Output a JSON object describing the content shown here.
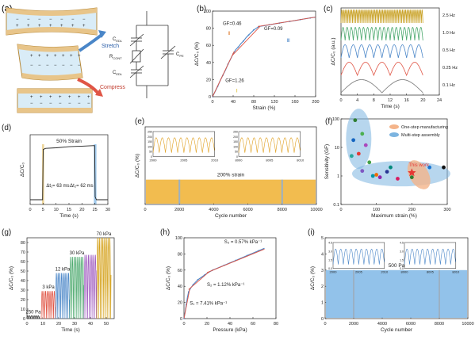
{
  "panel_letters": [
    "(a)",
    "(b)",
    "(c)",
    "(d)",
    "(e)",
    "(f)",
    "(g)",
    "(h)",
    "(i)"
  ],
  "panel_a": {
    "stretch_label": "Stretch",
    "compress_label": "Compress",
    "circuit_labels": {
      "cedl_top": "C",
      "cedl_top_sub": "EDL",
      "rcont": "R",
      "rcont_sub": "CONT",
      "cedl_bottom": "C",
      "cedl_bottom_sub": "EDL",
      "cpe": "C",
      "cpe_sub": "PE"
    },
    "colors": {
      "electrode": "#e8c58a",
      "electrolyte": "#d9ecf7",
      "stretch_arrow": "#4a86c8",
      "compress_arrow": "#e05545"
    }
  },
  "chart_data": [
    {
      "id": "b",
      "type": "line",
      "xlabel": "Strain (%)",
      "ylabel": "ΔC/C₀ (%)",
      "xlim": [
        0,
        200
      ],
      "ylim": [
        0,
        100
      ],
      "xticks": [
        0,
        40,
        80,
        120,
        160,
        200
      ],
      "yticks": [
        0,
        20,
        40,
        60,
        80,
        100
      ],
      "series": [
        {
          "x": [
            0,
            5,
            10,
            15,
            20,
            25,
            30,
            35,
            40,
            45,
            50,
            55,
            60,
            65,
            70,
            75,
            80,
            85,
            90,
            100,
            110,
            120,
            130,
            140,
            150,
            160,
            170,
            180,
            190,
            200
          ],
          "y": [
            0,
            6,
            12,
            19,
            25,
            31,
            38,
            44,
            50,
            55,
            58,
            62,
            65,
            69,
            72,
            75,
            78,
            80,
            82,
            83,
            84,
            85,
            86,
            87,
            88,
            89,
            90,
            91,
            92,
            93
          ],
          "color": "#4a86c8"
        }
      ],
      "fit_lines": [
        {
          "x": [
            0,
            42
          ],
          "y": [
            0,
            53
          ],
          "color": "#e05545"
        },
        {
          "x": [
            38,
            92
          ],
          "y": [
            48,
            82
          ],
          "color": "#e05545"
        },
        {
          "x": [
            88,
            200
          ],
          "y": [
            82,
            93
          ],
          "color": "#e05545"
        }
      ],
      "annotations": [
        {
          "text": "GF=0.46",
          "x": 20,
          "y": 84
        },
        {
          "text": "Ⅱ",
          "x": 30,
          "y": 72,
          "color": "#e0823a"
        },
        {
          "text": "GF=0.09",
          "x": 100,
          "y": 78
        },
        {
          "text": "Ⅲ",
          "x": 144,
          "y": 64,
          "color": "#4a86c8"
        },
        {
          "text": "GF=1.26",
          "x": 25,
          "y": 17
        },
        {
          "text": "Ⅰ",
          "x": 46,
          "y": 5,
          "color": "#d4b000"
        }
      ]
    },
    {
      "id": "c",
      "type": "line",
      "xlabel": "Time (s)",
      "ylabel": "ΔC/C₀ (a.u.)",
      "xlim": [
        0,
        24
      ],
      "xticks": [
        0,
        4,
        8,
        12,
        16,
        20,
        24
      ],
      "series": [
        {
          "name": "2.5 Hz",
          "freq": 2.5,
          "color": "#c9a227"
        },
        {
          "name": "1.0 Hz",
          "freq": 1.0,
          "color": "#4aa86c"
        },
        {
          "name": "0.5 Hz",
          "freq": 0.5,
          "color": "#4a86c8"
        },
        {
          "name": "0.25 Hz",
          "freq": 0.25,
          "color": "#e05545"
        },
        {
          "name": "0.1 Hz",
          "freq": 0.1,
          "color": "#7a7a7a"
        }
      ]
    },
    {
      "id": "d",
      "type": "line",
      "title": "50% Strain",
      "xlabel": "Time (s)",
      "ylabel": "ΔC/C₀",
      "xlim": [
        0,
        30
      ],
      "xticks": [
        0,
        5,
        10,
        15,
        20,
        25,
        30
      ],
      "series": [
        {
          "x": [
            0,
            4.8,
            5.05,
            6,
            10,
            15,
            20,
            24.9,
            25.1,
            25.6,
            30
          ],
          "y": [
            0,
            0,
            0.9,
            0.92,
            0.93,
            0.95,
            0.96,
            0.97,
            0.05,
            0,
            0
          ],
          "color": "#222222"
        }
      ],
      "annotations": [
        {
          "text": "Δt₁= 63 ms",
          "x": 5
        },
        {
          "text": "Δt₂= 62 ms",
          "x": 25
        }
      ],
      "highlights": [
        {
          "x": [
            4.6,
            5.4
          ],
          "color": "#e8c87a"
        },
        {
          "x": [
            24.6,
            25.6
          ],
          "color": "#7fb7e6"
        }
      ]
    },
    {
      "id": "e",
      "type": "line",
      "xlabel": "Cycle number",
      "ylabel": "ΔC/C₀ (%)",
      "xlim": [
        0,
        10000
      ],
      "xticks": [
        0,
        2000,
        4000,
        6000,
        8000,
        10000
      ],
      "amplitude": 50,
      "color": "#f0b030",
      "annotation": "200% strain",
      "insets": [
        {
          "xlim": [
            2000,
            2010
          ],
          "xticks": [
            "2000",
            "2005",
            "2010"
          ],
          "yticks": [
            "0",
            "50",
            "100",
            "150",
            "200",
            "250"
          ]
        },
        {
          "xlim": [
            8000,
            8010
          ],
          "xticks": [
            "8000",
            "8005",
            "8010"
          ],
          "yticks": [
            "0",
            "50",
            "100",
            "150",
            "200",
            "250"
          ]
        }
      ]
    },
    {
      "id": "f",
      "type": "scatter",
      "xlabel": "Maximum strain (%)",
      "ylabel": "Sensitivity (GF)",
      "xlim": [
        0,
        300
      ],
      "xticks": [
        0,
        100,
        200,
        300
      ],
      "yscale": "log",
      "yticks": [
        "0.1",
        "1",
        "10",
        "100"
      ],
      "legend": [
        {
          "label": "One-step manufacturing",
          "color": "#f4b48a"
        },
        {
          "label": "Multi-step assembly",
          "color": "#7cb4e0"
        }
      ],
      "highlight_label": "This work",
      "points": [
        {
          "x": 40,
          "y": 90,
          "color": "#2e7d32"
        },
        {
          "x": 60,
          "y": 30,
          "color": "#4caf50"
        },
        {
          "x": 35,
          "y": 18,
          "color": "#1565c0"
        },
        {
          "x": 70,
          "y": 12,
          "color": "#ab47bc"
        },
        {
          "x": 50,
          "y": 6,
          "color": "#e53935"
        },
        {
          "x": 30,
          "y": 5,
          "color": "#26a69a"
        },
        {
          "x": 80,
          "y": 3,
          "color": "#43a047"
        },
        {
          "x": 60,
          "y": 1.5,
          "color": "#7e57c2"
        },
        {
          "x": 90,
          "y": 1.0,
          "color": "#0097a7"
        },
        {
          "x": 110,
          "y": 0.9,
          "color": "#8e24aa"
        },
        {
          "x": 130,
          "y": 1.4,
          "color": "#283593"
        },
        {
          "x": 160,
          "y": 0.8,
          "color": "#d81b60"
        },
        {
          "x": 200,
          "y": 0.9,
          "color": "#2e7d32"
        },
        {
          "x": 250,
          "y": 2.0,
          "color": "#1976d2"
        },
        {
          "x": 140,
          "y": 2.0,
          "color": "#00897b"
        },
        {
          "x": 290,
          "y": 2.0,
          "color": "#111111"
        },
        {
          "x": 100,
          "y": 1.1,
          "color": "#ef6c00"
        }
      ],
      "star": {
        "x": 200,
        "y": 1.3,
        "color": "#e53935"
      }
    },
    {
      "id": "g",
      "type": "line",
      "xlabel": "Time (s)",
      "ylabel": "ΔC/C₀ (%)",
      "xlim": [
        0,
        55
      ],
      "ylim": [
        0,
        85
      ],
      "xticks": [
        0,
        10,
        20,
        30,
        40,
        50
      ],
      "yticks": [
        0,
        10,
        20,
        30,
        40,
        50,
        60,
        70,
        80
      ],
      "groups": [
        {
          "label": "250 Pa",
          "x0": 0,
          "x1": 8,
          "amp": 3,
          "color": "#333333"
        },
        {
          "label": "3 kPa",
          "x0": 9,
          "x1": 18,
          "amp": 29,
          "color": "#e05545"
        },
        {
          "label": "12 kPa",
          "x0": 18,
          "x1": 27,
          "amp": 48,
          "color": "#4a86c8"
        },
        {
          "label": "30 kPa",
          "x0": 27,
          "x1": 36,
          "amp": 65,
          "color": "#4aa86c"
        },
        {
          "label": "",
          "x0": 36,
          "x1": 44,
          "amp": 67,
          "color": "#a05cc0"
        },
        {
          "label": "70 kPa",
          "x0": 44,
          "x1": 53,
          "amp": 85,
          "color": "#d4a017"
        }
      ]
    },
    {
      "id": "h",
      "type": "line",
      "xlabel": "Pressure (kPa)",
      "ylabel": "ΔC/C₀ (%)",
      "xlim": [
        0,
        80
      ],
      "ylim": [
        0,
        100
      ],
      "xticks": [
        0,
        20,
        40,
        60,
        80
      ],
      "yticks": [
        0,
        20,
        40,
        60,
        80,
        100
      ],
      "series": [
        {
          "x": [
            0,
            1,
            2,
            3,
            4,
            6,
            8,
            10,
            12,
            15,
            18,
            20,
            25,
            30,
            35,
            40,
            45,
            50,
            55,
            60,
            65,
            70
          ],
          "y": [
            0,
            8,
            17,
            26,
            33,
            38,
            42,
            45,
            48,
            51,
            54,
            56,
            60,
            63,
            66,
            69,
            72,
            75,
            78,
            81,
            84,
            87
          ],
          "color": "#4a86c8"
        }
      ],
      "fit_lines": [
        {
          "x": [
            0,
            5
          ],
          "y": [
            0,
            37
          ],
          "color": "#e05545"
        },
        {
          "x": [
            4,
            22
          ],
          "y": [
            36,
            58
          ],
          "color": "#e05545"
        },
        {
          "x": [
            20,
            70
          ],
          "y": [
            57,
            86
          ],
          "color": "#e05545"
        }
      ],
      "annotations": [
        {
          "text": "S₃ = 0.57% kPa⁻¹",
          "x": 35,
          "y": 93
        },
        {
          "text": "S₂ = 1.12% kPa⁻¹",
          "x": 20,
          "y": 40
        },
        {
          "text": "S₁ = 7.41% kPa⁻¹",
          "x": 5,
          "y": 17
        }
      ]
    },
    {
      "id": "i",
      "type": "line",
      "xlabel": "Cycle number",
      "ylabel": "ΔC/C₀ (%)",
      "xlim": [
        0,
        10000
      ],
      "ylim": [
        0,
        5
      ],
      "xticks": [
        0,
        2000,
        4000,
        6000,
        8000,
        10000
      ],
      "yticks": [
        0,
        1,
        2,
        3,
        4,
        5
      ],
      "amplitude": 3,
      "color": "#7fb7e6",
      "annotation": "500 Pa",
      "insets": [
        {
          "xlim": [
            2000,
            2010
          ],
          "xticks": [
            "2000",
            "2005",
            "2010"
          ],
          "yticks": [
            "0.0",
            "1.5",
            "3.0",
            "4.5"
          ]
        },
        {
          "xlim": [
            8000,
            8010
          ],
          "xticks": [
            "8000",
            "8005",
            "8010"
          ],
          "yticks": [
            "0.0",
            "1.5",
            "3.0",
            "4.5"
          ]
        }
      ]
    }
  ]
}
